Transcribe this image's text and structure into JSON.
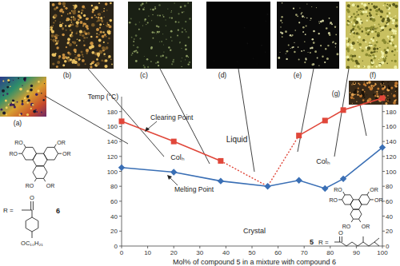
{
  "chart_data": {
    "type": "line",
    "x_label": "Mol% of compound 5 in a mixture with compound 6",
    "y_label": "Temp (°C)",
    "x": [
      0,
      20,
      38,
      56,
      68,
      78,
      85,
      100
    ],
    "series": [
      {
        "name": "Clearing Point",
        "color": "#e0473a",
        "marker": "square",
        "line_style": "solid",
        "values": [
          167,
          140,
          114,
          null,
          148,
          168,
          182,
          198
        ]
      },
      {
        "name": "Melting Point",
        "color": "#3a6fb5",
        "marker": "diamond",
        "line_style": "solid",
        "values": [
          105,
          99,
          87,
          80,
          88,
          77,
          90,
          132
        ]
      },
      {
        "color": "#e0473a",
        "marker": "none",
        "line_style": "dotted",
        "values": [
          null,
          null,
          114,
          80,
          148,
          null,
          null,
          null
        ]
      }
    ],
    "annotations": [
      "Liquid",
      "Colₕ",
      "Colₕ",
      "Crystal"
    ],
    "xlim": [
      0,
      100
    ],
    "xticks": [
      0,
      10,
      20,
      30,
      40,
      50,
      60,
      70,
      80,
      90,
      100
    ],
    "ylim": [
      0,
      200
    ],
    "yticks": [
      0,
      20,
      40,
      60,
      80,
      100,
      120,
      140,
      160,
      180
    ],
    "grid": false
  },
  "panels": [
    "(a)",
    "(b)",
    "(c)",
    "(d)",
    "(e)",
    "(f)",
    "(g)"
  ],
  "structures": [
    {
      "compound": "6",
      "r_label": "R =",
      "substituents": [
        "RO",
        "OR",
        "RO",
        "OR",
        "RO",
        "OR"
      ],
      "carbonyl": "O",
      "tail": "OC₁₀H₂₁"
    },
    {
      "compound": "5",
      "r_label": "R =",
      "substituents": [
        "RO",
        "OR",
        "RO",
        "OR",
        "RO",
        "OR"
      ],
      "carbonyl": "O"
    }
  ]
}
